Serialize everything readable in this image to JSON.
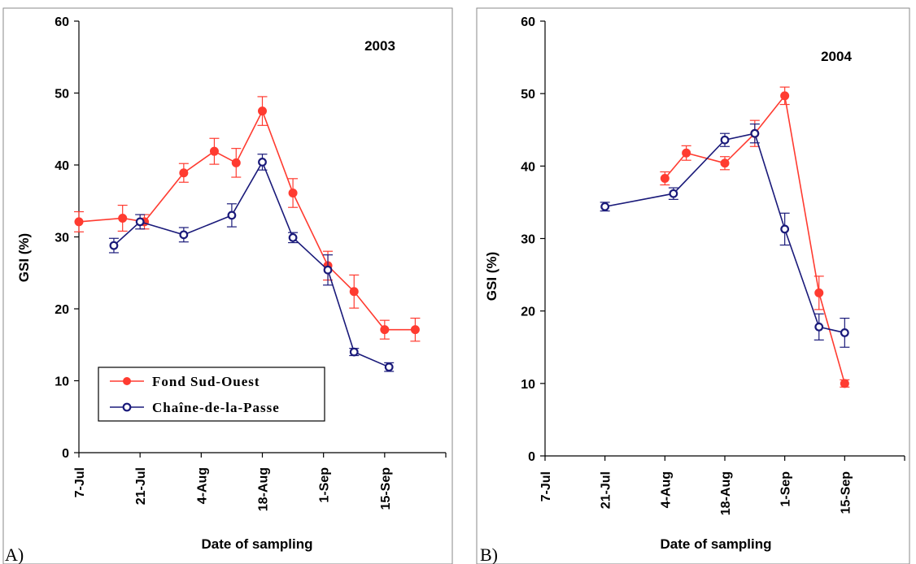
{
  "chart_data": [
    {
      "type": "line",
      "panel_label": "A)",
      "year_label": "2003",
      "xlabel": "Date of sampling",
      "ylabel": "GSI (%)",
      "ylim": [
        0,
        60
      ],
      "yticks": [
        0,
        10,
        20,
        30,
        40,
        50,
        60
      ],
      "xlim": [
        "2003-07-07",
        "2003-09-29"
      ],
      "xticks": [
        {
          "label": "7-Jul",
          "date": "2003-07-07"
        },
        {
          "label": "21-Jul",
          "date": "2003-07-21"
        },
        {
          "label": "4-Aug",
          "date": "2003-08-04"
        },
        {
          "label": "18-Aug",
          "date": "2003-08-18"
        },
        {
          "label": "1-Sep",
          "date": "2003-09-01"
        },
        {
          "label": "15-Sep",
          "date": "2003-09-15"
        }
      ],
      "legend": {
        "placement": "bottom-left"
      },
      "series": [
        {
          "name": "Fond Sud-Ouest",
          "color": "#ff3b30",
          "marker": "filled-circle",
          "points": [
            {
              "date": "2003-07-07",
              "y": 32.1,
              "err": 1.4
            },
            {
              "date": "2003-07-17",
              "y": 32.6,
              "err": 1.8
            },
            {
              "date": "2003-07-22",
              "y": 32.1,
              "err": 1.0
            },
            {
              "date": "2003-07-31",
              "y": 38.9,
              "err": 1.3
            },
            {
              "date": "2003-08-07",
              "y": 41.9,
              "err": 1.8
            },
            {
              "date": "2003-08-12",
              "y": 40.3,
              "err": 2.0
            },
            {
              "date": "2003-08-18",
              "y": 47.5,
              "err": 2.0
            },
            {
              "date": "2003-08-25",
              "y": 36.1,
              "err": 2.0
            },
            {
              "date": "2003-09-02",
              "y": 26.0,
              "err": 2.0
            },
            {
              "date": "2003-09-08",
              "y": 22.4,
              "err": 2.3
            },
            {
              "date": "2003-09-15",
              "y": 17.1,
              "err": 1.3
            },
            {
              "date": "2003-09-22",
              "y": 17.1,
              "err": 1.6
            }
          ]
        },
        {
          "name": "Chaîne-de-la-Passe",
          "color": "#1a1a7a",
          "marker": "open-circle",
          "points": [
            {
              "date": "2003-07-15",
              "y": 28.8,
              "err": 1.0
            },
            {
              "date": "2003-07-21",
              "y": 32.1,
              "err": 1.0
            },
            {
              "date": "2003-07-31",
              "y": 30.3,
              "err": 1.0
            },
            {
              "date": "2003-08-11",
              "y": 33.0,
              "err": 1.6
            },
            {
              "date": "2003-08-18",
              "y": 40.4,
              "err": 1.1
            },
            {
              "date": "2003-08-25",
              "y": 29.9,
              "err": 0.7
            },
            {
              "date": "2003-09-02",
              "y": 25.4,
              "err": 2.1
            },
            {
              "date": "2003-09-08",
              "y": 14.0,
              "err": 0.5
            },
            {
              "date": "2003-09-16",
              "y": 11.9,
              "err": 0.6
            }
          ]
        }
      ]
    },
    {
      "type": "line",
      "panel_label": "B)",
      "year_label": "2004",
      "xlabel": "Date of sampling",
      "ylabel": "GSI (%)",
      "ylim": [
        0,
        60
      ],
      "yticks": [
        0,
        10,
        20,
        30,
        40,
        50,
        60
      ],
      "xlim": [
        "2004-07-07",
        "2004-09-29"
      ],
      "xticks": [
        {
          "label": "7-Jul",
          "date": "2004-07-07"
        },
        {
          "label": "21-Jul",
          "date": "2004-07-21"
        },
        {
          "label": "4-Aug",
          "date": "2004-08-04"
        },
        {
          "label": "18-Aug",
          "date": "2004-08-18"
        },
        {
          "label": "1-Sep",
          "date": "2004-09-01"
        },
        {
          "label": "15-Sep",
          "date": "2004-09-15"
        }
      ],
      "series": [
        {
          "name": "Fond Sud-Ouest",
          "color": "#ff3b30",
          "marker": "filled-circle",
          "points": [
            {
              "date": "2004-08-04",
              "y": 38.3,
              "err": 0.9
            },
            {
              "date": "2004-08-09",
              "y": 41.8,
              "err": 1.0
            },
            {
              "date": "2004-08-18",
              "y": 40.4,
              "err": 0.9
            },
            {
              "date": "2004-08-25",
              "y": 44.5,
              "err": 1.8
            },
            {
              "date": "2004-09-01",
              "y": 49.7,
              "err": 1.2
            },
            {
              "date": "2004-09-09",
              "y": 22.5,
              "err": 2.3
            },
            {
              "date": "2004-09-15",
              "y": 10.0,
              "err": 0.5
            }
          ]
        },
        {
          "name": "Chaîne-de-la-Passe",
          "color": "#1a1a7a",
          "marker": "open-circle",
          "points": [
            {
              "date": "2004-07-21",
              "y": 34.4,
              "err": 0.6
            },
            {
              "date": "2004-08-06",
              "y": 36.2,
              "err": 0.8
            },
            {
              "date": "2004-08-18",
              "y": 43.6,
              "err": 0.9
            },
            {
              "date": "2004-08-25",
              "y": 44.5,
              "err": 1.3
            },
            {
              "date": "2004-09-01",
              "y": 31.3,
              "err": 2.2
            },
            {
              "date": "2004-09-09",
              "y": 17.8,
              "err": 1.8
            },
            {
              "date": "2004-09-15",
              "y": 17.0,
              "err": 2.0
            }
          ]
        }
      ]
    }
  ]
}
